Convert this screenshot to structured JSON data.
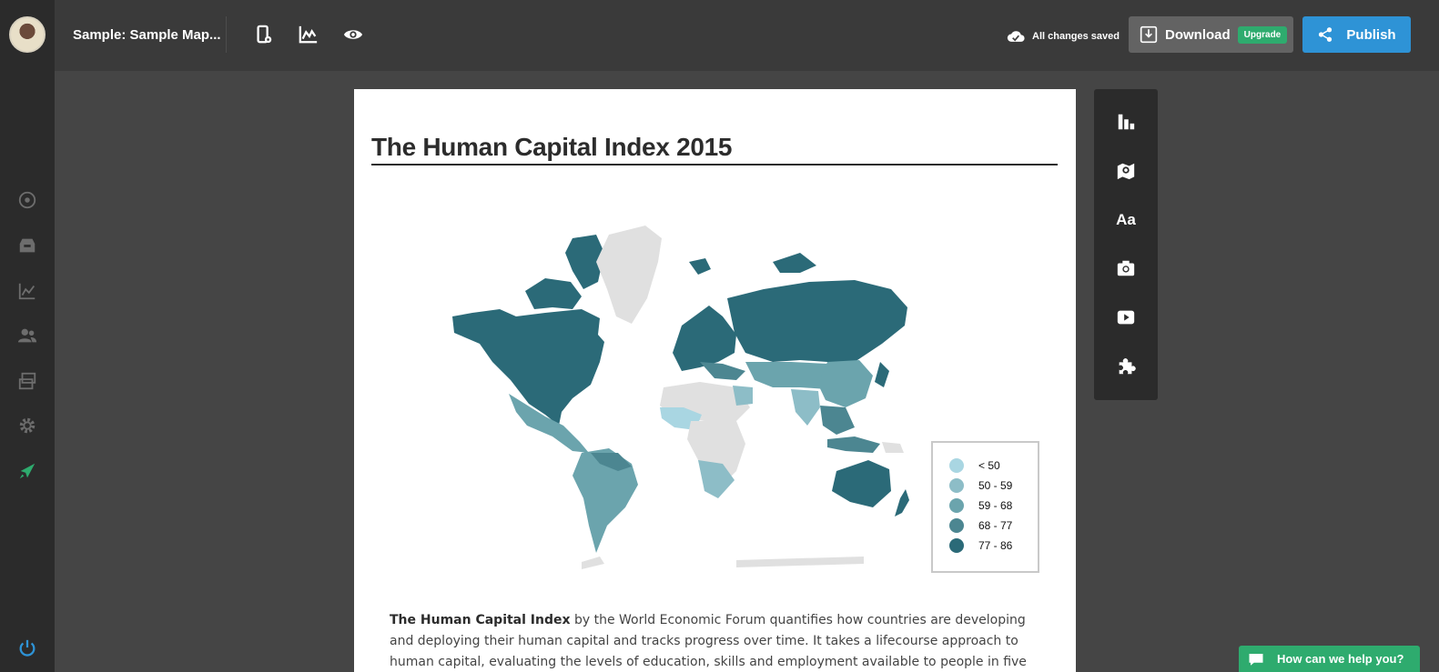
{
  "app": {
    "document_title": "Sample: Sample Map...",
    "save_status": "All changes saved",
    "download_label": "Download",
    "upgrade_badge": "Upgrade",
    "publish_label": "Publish",
    "help_label": "How can we help you?"
  },
  "sidebar": {
    "items": [
      "add-icon",
      "inbox-icon",
      "analytics-icon",
      "team-icon",
      "projects-icon",
      "settings-icon",
      "rocket-icon",
      "power-icon"
    ]
  },
  "widgets": {
    "items": [
      "chart-icon",
      "map-icon",
      "text-icon",
      "camera-icon",
      "video-icon",
      "puzzle-icon"
    ],
    "text_icon_label": "Aa"
  },
  "page": {
    "title": "The Human Capital Index 2015",
    "paragraph_bold": "The Human Capital Index",
    "paragraph_text": " by the World Economic Forum quantifies how countries are developing and deploying their human capital and tracks progress over time. It takes a lifecourse approach to human capital, evaluating the levels of education, skills and employment available to people in five distinct age"
  },
  "legend": {
    "items": [
      {
        "label": "< 50",
        "color": "#a9d6e2"
      },
      {
        "label": "50 - 59",
        "color": "#8dbdc7"
      },
      {
        "label": "59 - 68",
        "color": "#6ba4ad"
      },
      {
        "label": "68 - 77",
        "color": "#4c8691"
      },
      {
        "label": "77 - 86",
        "color": "#2b6a78"
      }
    ],
    "no_data_color": "#e0e0e0"
  },
  "colors": {
    "accent_publish": "#2e93d6",
    "accent_green": "#2eab6e",
    "sidebar_bg": "#2b2b2b",
    "topbar_bg": "#3a3a3a"
  }
}
